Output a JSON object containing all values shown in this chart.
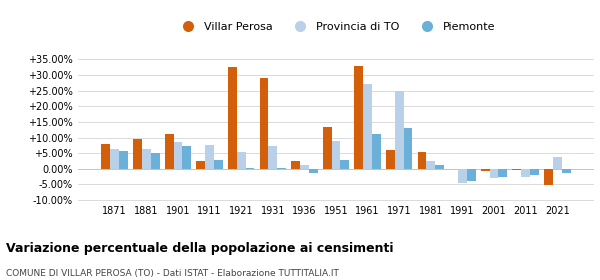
{
  "years": [
    1871,
    1881,
    1901,
    1911,
    1921,
    1931,
    1936,
    1951,
    1961,
    1971,
    1981,
    1991,
    2001,
    2011,
    2021
  ],
  "villar_perosa": [
    7.8,
    9.5,
    11.2,
    2.5,
    32.5,
    29.0,
    2.5,
    13.5,
    32.8,
    6.0,
    5.3,
    0.0,
    -0.8,
    -0.3,
    -5.2
  ],
  "provincia_to": [
    6.2,
    6.2,
    8.5,
    7.5,
    5.5,
    7.2,
    1.2,
    9.0,
    27.0,
    25.0,
    2.5,
    -4.5,
    -2.8,
    -2.5,
    3.8
  ],
  "piemonte": [
    5.8,
    5.2,
    7.2,
    2.8,
    0.2,
    0.1,
    -1.5,
    2.8,
    11.0,
    13.2,
    1.2,
    -4.0,
    -2.5,
    -2.0,
    -1.5
  ],
  "color_villar": "#d45f0a",
  "color_provincia": "#b8d0e8",
  "color_piemonte": "#6ab0d8",
  "ylim": [
    -10.5,
    37
  ],
  "yticks": [
    -10,
    -5,
    0,
    5,
    10,
    15,
    20,
    25,
    30,
    35
  ],
  "title": "Variazione percentuale della popolazione ai censimenti",
  "subtitle": "COMUNE DI VILLAR PEROSA (TO) - Dati ISTAT - Elaborazione TUTTITALIA.IT",
  "legend_labels": [
    "Villar Perosa",
    "Provincia di TO",
    "Piemonte"
  ],
  "bar_width": 0.28
}
